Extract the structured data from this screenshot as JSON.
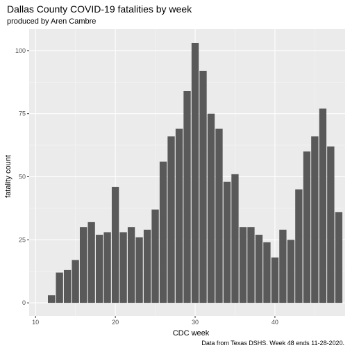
{
  "chart_data": {
    "type": "bar",
    "title": "Dallas County COVID-19 fatalities by week",
    "subtitle": "produced by Aren Cambre",
    "xlabel": "CDC week",
    "ylabel": "fatality count",
    "caption": "Data from Texas DSHS. Week 48 ends 11-28-2020.",
    "xlim": [
      9.2,
      48.8
    ],
    "ylim": [
      -5.2,
      108.5
    ],
    "x_ticks": [
      10,
      20,
      30,
      40,
      50
    ],
    "y_ticks": [
      0,
      25,
      50,
      75,
      100
    ],
    "grid": true,
    "colors": {
      "bar": "#595959",
      "panel": "#ebebeb",
      "grid_major": "#ffffff",
      "grid_minor": "#f5f5f5"
    },
    "x": [
      12,
      13,
      14,
      15,
      16,
      17,
      18,
      19,
      20,
      21,
      22,
      23,
      24,
      25,
      26,
      27,
      28,
      29,
      30,
      31,
      32,
      33,
      34,
      35,
      36,
      37,
      38,
      39,
      40,
      41,
      42,
      43,
      44,
      45,
      46,
      47,
      48
    ],
    "values": [
      3,
      12,
      13,
      17,
      30,
      32,
      27,
      28,
      46,
      28,
      30,
      26,
      29,
      37,
      56,
      66,
      69,
      84,
      103,
      92,
      75,
      69,
      48,
      51,
      30,
      30,
      27,
      24,
      18,
      29,
      25,
      45,
      60,
      66,
      77,
      62,
      36
    ]
  }
}
